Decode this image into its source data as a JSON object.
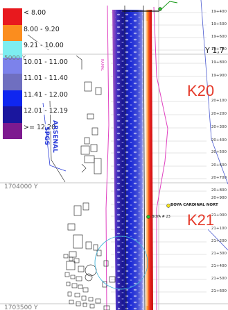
{
  "legend": {
    "items": [
      {
        "label": "< 8.00",
        "color": "#e8191e"
      },
      {
        "label": "8.00 - 9.20",
        "color": "#fb8d1e"
      },
      {
        "label": "9.21 - 10.00",
        "color": "#7deef0"
      },
      {
        "label": "10.01 - 11.00",
        "color": "#7c82eb"
      },
      {
        "label": "11.01 - 11.40",
        "color": "#6f6fc0"
      },
      {
        "label": "11.41 - 12.00",
        "color": "#0f26f0"
      },
      {
        "label": "12.01 - 12.19",
        "color": "#1a169e"
      },
      {
        "label": ">= 12.20",
        "color": "#7d1a8f"
      }
    ]
  },
  "grid": {
    "y_top": "Y 1,7",
    "y_mid": "1704000 Y",
    "y_top_left": "5000 Y",
    "y_bottom": "1703500 Y"
  },
  "zones": {
    "k20": "K20",
    "k21": "K21"
  },
  "stations": [
    "19+400",
    "19+500",
    "19+600",
    "19+700",
    "19+800",
    "19+900",
    "20+100",
    "20+200",
    "20+300",
    "20+400",
    "20+500",
    "20+600",
    "20+700",
    "20+800",
    "20+900",
    "21+000",
    "21+100",
    "21+200",
    "21+300",
    "21+400",
    "21+500",
    "21+600"
  ],
  "places": {
    "arsenal": "ARSENAL",
    "spgs": "SPGS",
    "boya_cardinal": "BOYA CARDINAL NORT",
    "boya_23": "BOYA # 23",
    "ramal": "RAMAL"
  },
  "colors": {
    "zone_label": "#e53a2a",
    "boundary": "#e040c0",
    "grid_line": "#a0a0a0"
  }
}
